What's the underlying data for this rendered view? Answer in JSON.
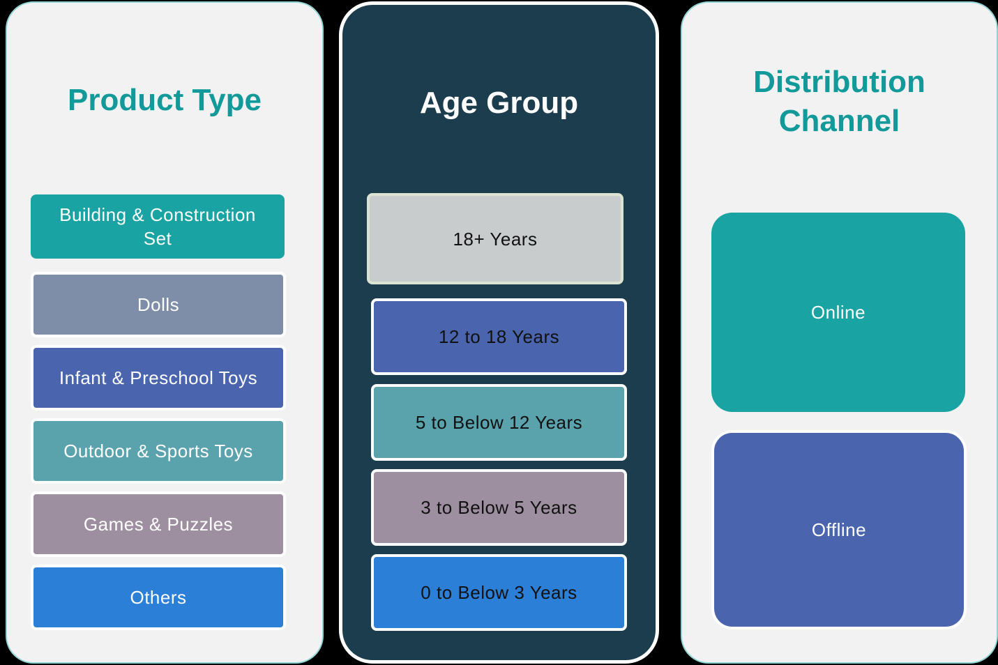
{
  "product_type": {
    "title": "Product Type",
    "items": [
      {
        "label": "Building & Construction Set",
        "color": "#1aa3a3"
      },
      {
        "label": "Dolls",
        "color": "#7f8ea8"
      },
      {
        "label": "Infant & Preschool Toys",
        "color": "#4a65ad"
      },
      {
        "label": "Outdoor & Sports Toys",
        "color": "#5aa3ad"
      },
      {
        "label": "Games & Puzzles",
        "color": "#9e8fa0"
      },
      {
        "label": "Others",
        "color": "#2b7fd6"
      }
    ]
  },
  "age_group": {
    "title": "Age Group",
    "items": [
      {
        "label": "18+ Years",
        "color": "#c8cccd"
      },
      {
        "label": "12 to 18 Years",
        "color": "#4a65ad"
      },
      {
        "label": "5 to Below 12 Years",
        "color": "#5aa3ad"
      },
      {
        "label": "3 to Below 5 Years",
        "color": "#9e8fa0"
      },
      {
        "label": "0 to Below 3 Years",
        "color": "#2b7fd6"
      }
    ]
  },
  "distribution_channel": {
    "title": "Distribution Channel",
    "items": [
      {
        "label": "Online",
        "color": "#1aa3a3"
      },
      {
        "label": "Offline",
        "color": "#4a65ad"
      }
    ]
  }
}
